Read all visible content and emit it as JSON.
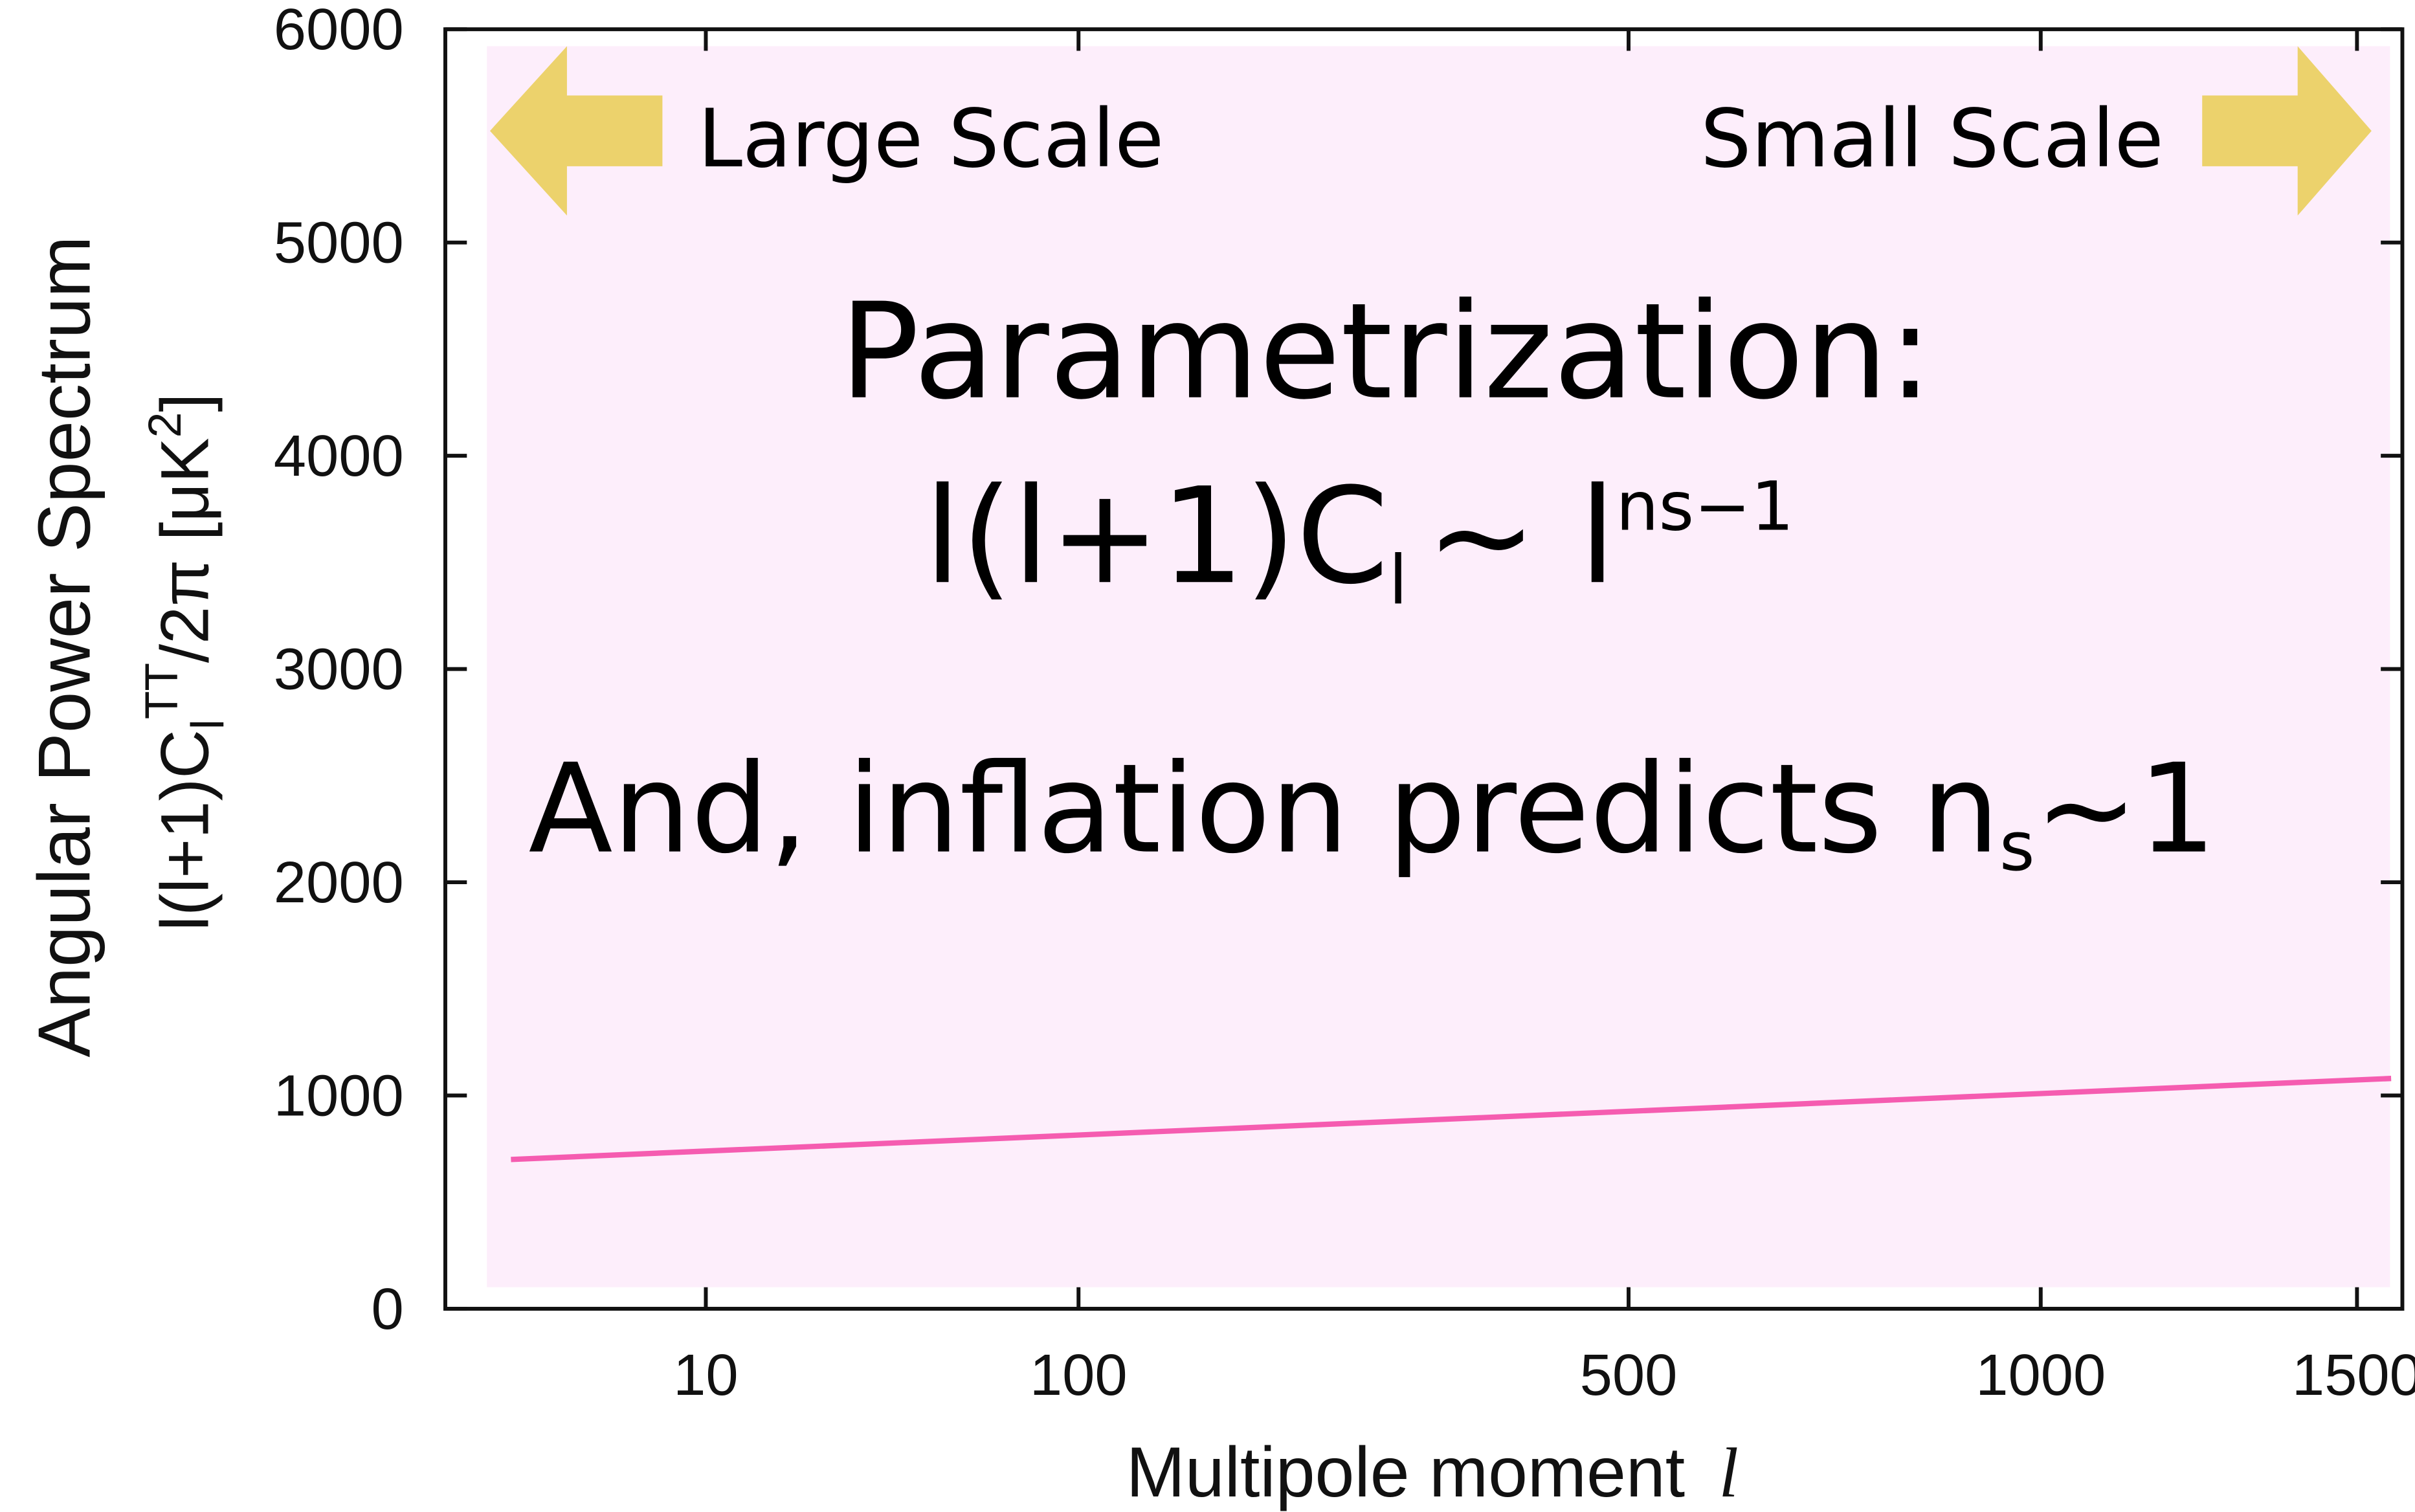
{
  "chart_data": {
    "type": "line",
    "xlabel": "Multipole moment",
    "xlabel_symbol": "l",
    "ylabel": "Angular Power Spectrum",
    "ylabel2": [
      "l(l+1)C",
      "l",
      "TT",
      "/2π [μK",
      "2",
      "]"
    ],
    "annotations": {
      "large_scale": "Large Scale",
      "small_scale": "Small Scale",
      "heading": "Parametrization:",
      "formula": [
        "l(l+1)C",
        "l",
        "~ l",
        "ns−1"
      ],
      "prediction": [
        "And, inflation predicts n",
        "s",
        "~1"
      ]
    },
    "xscale": "log-sqrt",
    "xbreak": 100,
    "xlim": [
      2,
      1580
    ],
    "xticks": [
      10,
      100,
      500,
      1000,
      1500
    ],
    "ylim": [
      0,
      6000
    ],
    "yticks": [
      0,
      1000,
      2000,
      3000,
      4000,
      5000,
      6000
    ],
    "background": "#fdeefb",
    "series": [
      {
        "color": "#f55cb0",
        "x": [
          3,
          1560
        ],
        "values": [
          700,
          1080
        ]
      }
    ]
  }
}
